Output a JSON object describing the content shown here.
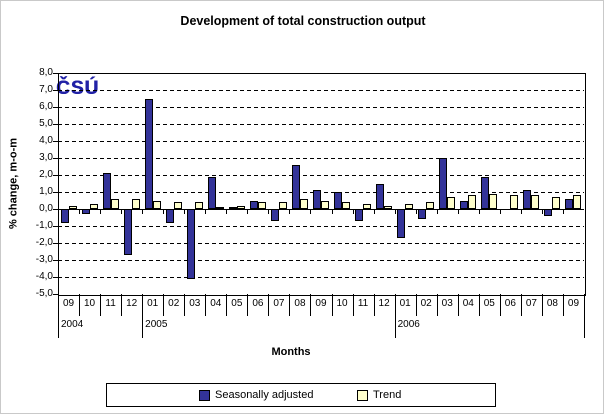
{
  "title": "Development of total construction output",
  "logo_text": "ČSÚ",
  "chart_data": {
    "type": "bar",
    "title": "Development of total construction output",
    "xlabel": "Months",
    "ylabel": "% change, m-o-m",
    "ylim": [
      -5,
      8
    ],
    "ytick_step": 1,
    "decimal_separator": ",",
    "grid": "horizontal-dashed",
    "legend_position": "bottom",
    "ytick_labels": [
      "8,0",
      "7,0",
      "6,0",
      "5,0",
      "4,0",
      "3,0",
      "2,0",
      "1,0",
      "0,0",
      "-1,0",
      "-2,0",
      "-3,0",
      "-4,0",
      "-5,0"
    ],
    "categories": [
      "09",
      "10",
      "11",
      "12",
      "01",
      "02",
      "03",
      "04",
      "05",
      "06",
      "07",
      "08",
      "09",
      "10",
      "11",
      "12",
      "01",
      "02",
      "03",
      "04",
      "05",
      "06",
      "07",
      "08",
      "09"
    ],
    "year_groups": [
      {
        "label": "2004",
        "span": 4
      },
      {
        "label": "2005",
        "span": 12
      },
      {
        "label": "2006",
        "span": 9
      }
    ],
    "series": [
      {
        "name": "Seasonally adjusted",
        "color": "#333399",
        "values": [
          -0.8,
          -0.3,
          2.1,
          -2.7,
          6.5,
          -0.8,
          -4.1,
          1.9,
          0.1,
          0.5,
          -0.7,
          2.6,
          1.1,
          1.0,
          -0.7,
          1.5,
          -1.7,
          -0.6,
          3.0,
          0.5,
          1.9,
          0.0,
          1.1,
          -0.4,
          0.6
        ]
      },
      {
        "name": "Trend",
        "color": "#ffffcc",
        "values": [
          0.2,
          0.3,
          0.6,
          0.6,
          0.5,
          0.4,
          0.4,
          0.1,
          0.2,
          0.4,
          0.4,
          0.6,
          0.5,
          0.4,
          0.3,
          0.2,
          0.3,
          0.4,
          0.7,
          0.8,
          0.9,
          0.8,
          0.8,
          0.7,
          0.8
        ]
      }
    ]
  },
  "colors": {
    "bar_border": "#000000",
    "seasonally_adjusted": "#333399",
    "trend": "#ffffcc",
    "logo_blue": "#2121a6"
  }
}
